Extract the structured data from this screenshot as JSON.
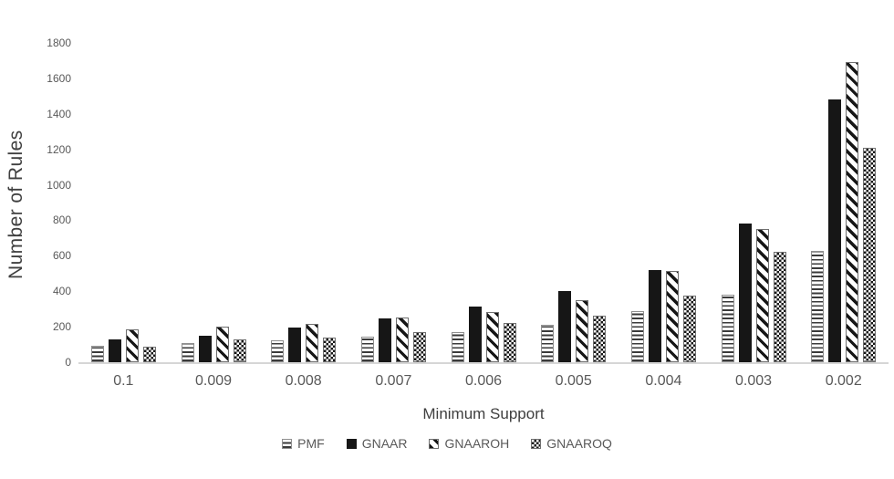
{
  "chart_data": {
    "type": "bar",
    "title": "",
    "xlabel": "Minimum Support",
    "ylabel": "Number of Rules",
    "categories": [
      "0.1",
      "0.009",
      "0.008",
      "0.007",
      "0.006",
      "0.005",
      "0.004",
      "0.003",
      "0.002"
    ],
    "series": [
      {
        "name": "PMF",
        "pattern": "horizontal-lines",
        "values": [
          95,
          110,
          125,
          145,
          170,
          210,
          290,
          380,
          630
        ]
      },
      {
        "name": "GNAAR",
        "pattern": "solid",
        "values": [
          130,
          150,
          195,
          245,
          315,
          400,
          520,
          780,
          1480
        ]
      },
      {
        "name": "GNAAROH",
        "pattern": "diagonal-stripes",
        "values": [
          185,
          200,
          215,
          250,
          285,
          350,
          515,
          750,
          1690
        ]
      },
      {
        "name": "GNAAROQ",
        "pattern": "checkerboard",
        "values": [
          90,
          130,
          140,
          170,
          220,
          260,
          375,
          620,
          1210
        ]
      }
    ],
    "ylim": [
      0,
      1800
    ],
    "yticks": [
      0,
      200,
      400,
      600,
      800,
      1000,
      1200,
      1400,
      1600,
      1800
    ],
    "grid": false,
    "legend_position": "bottom",
    "colors": {
      "bar_fill": "#161616",
      "background": "#ffffff",
      "axis_line": "#d6d6d6",
      "tick_label": "#595959",
      "axis_title": "#3f3f3f"
    }
  }
}
